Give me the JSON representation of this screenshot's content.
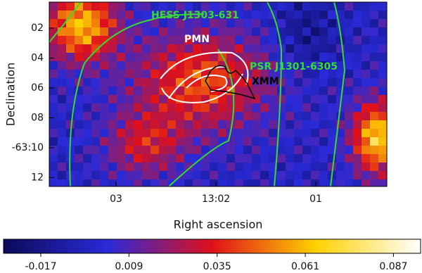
{
  "chart_data": {
    "type": "image",
    "xlabel": "Right ascension",
    "ylabel": "Declination",
    "xtick_labels": [
      "03",
      "13:02",
      "01"
    ],
    "ytick_labels": [
      "02",
      "04",
      "06",
      "08",
      "-63:10",
      "12"
    ],
    "annotations": [
      "HESS J1303-631",
      "PMN",
      "PSR J1301-6305",
      "XMM"
    ],
    "colorbar": {
      "clim": [
        -0.028,
        0.095
      ],
      "ticks": [
        -0.017,
        0.009,
        0.035,
        0.061,
        0.087
      ]
    }
  }
}
